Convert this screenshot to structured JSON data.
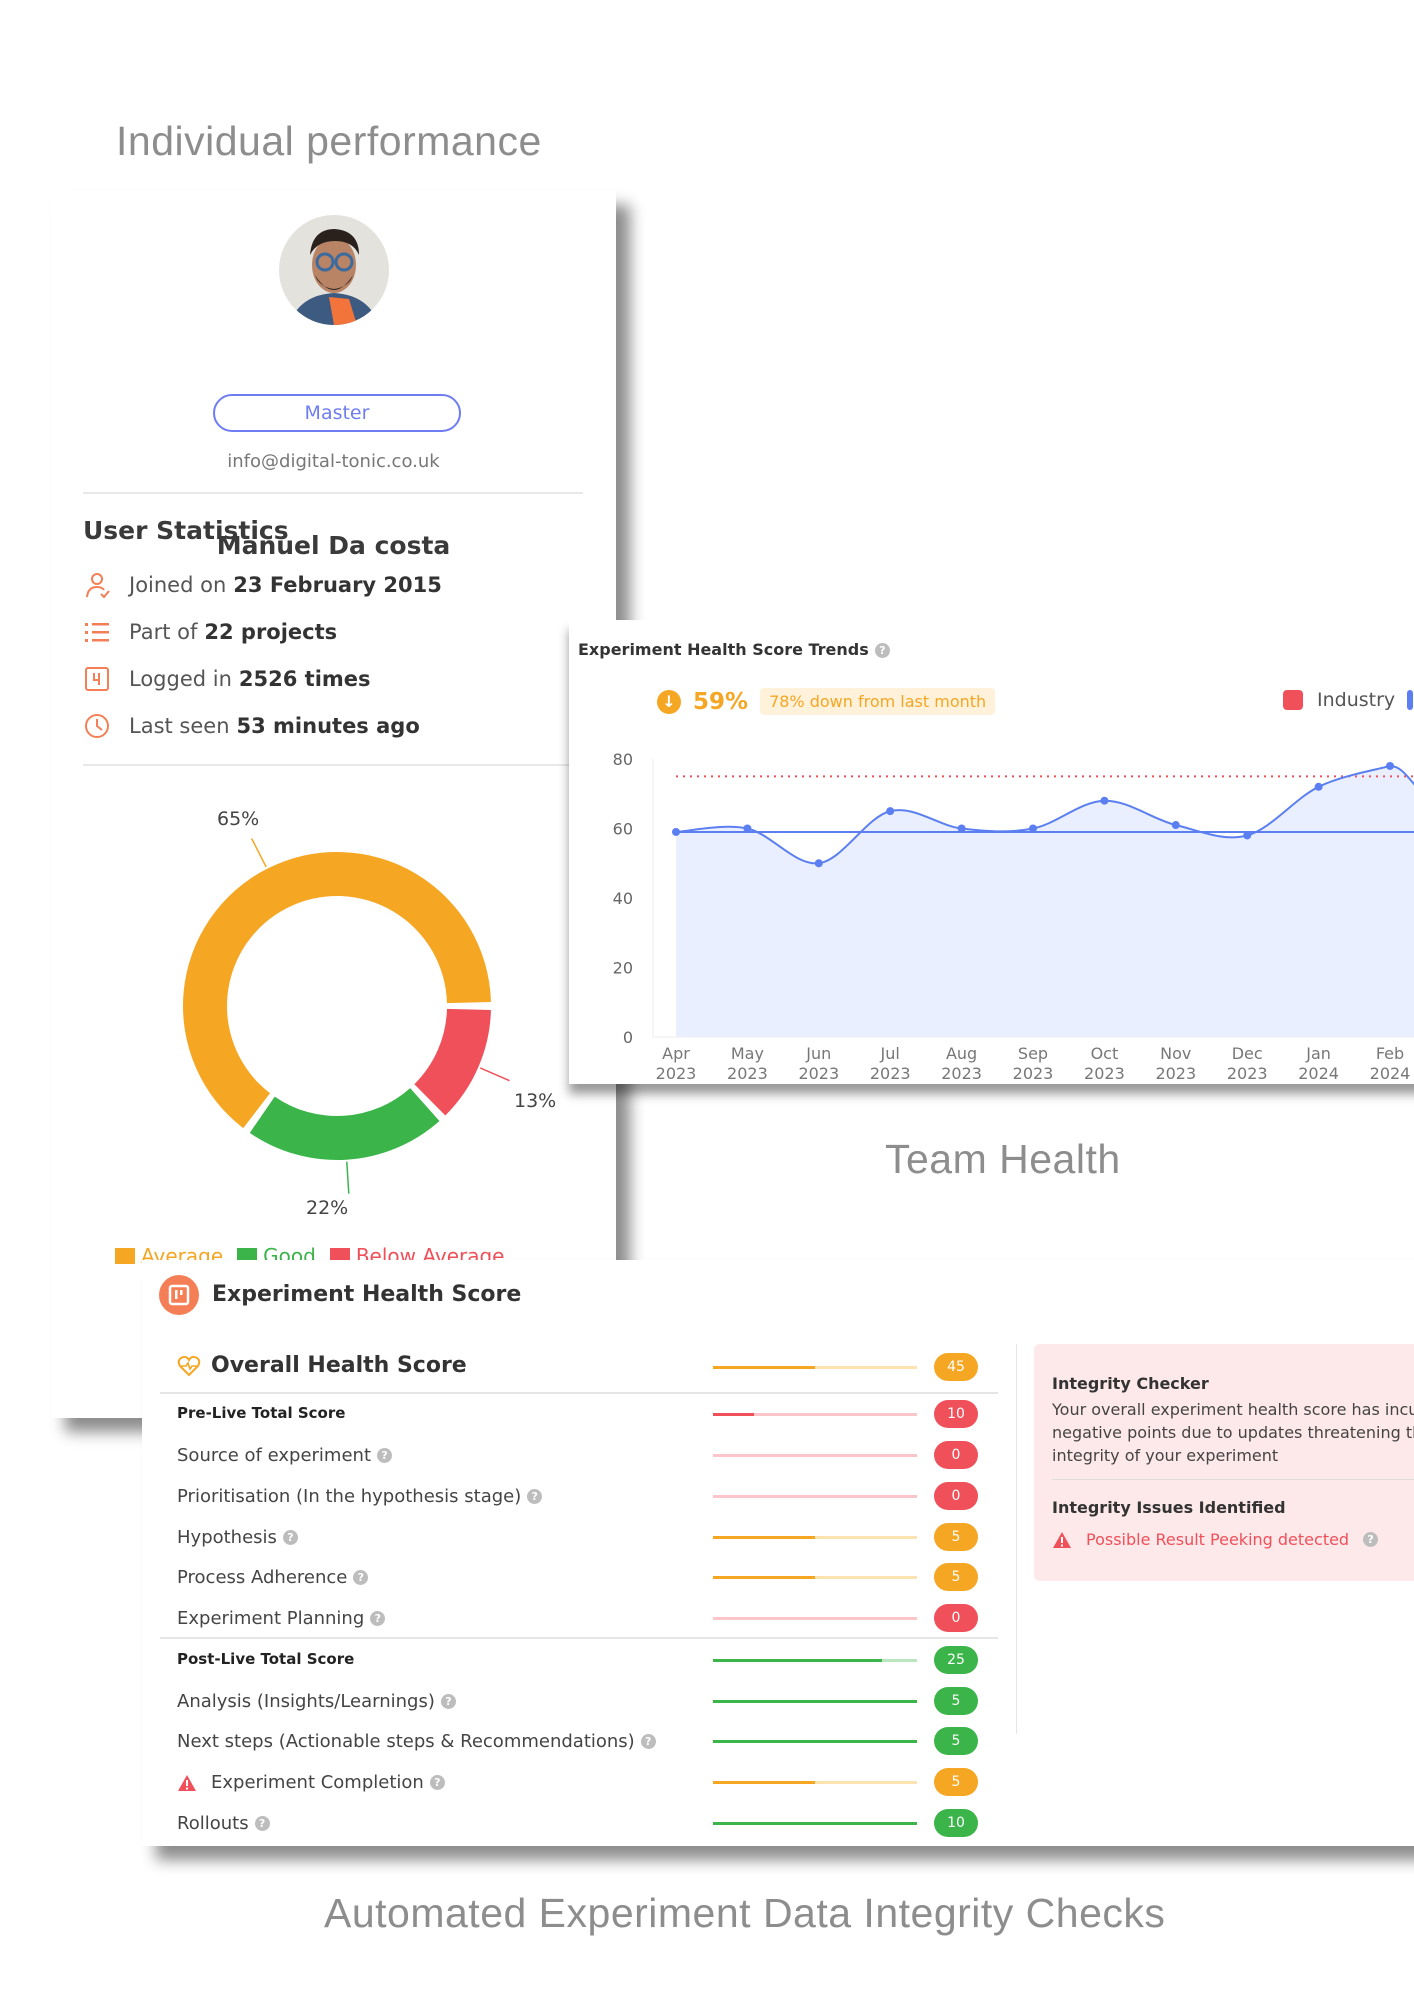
{
  "captions": {
    "individual": "Individual performance",
    "team": "Team Health",
    "integrity": "Automated Experiment Data Integrity Checks"
  },
  "profile": {
    "name": "Manuel Da costa",
    "role": "Master",
    "email": "info@digital-tonic.co.uk",
    "stats_title": "User Statistics",
    "stats": [
      {
        "icon": "user-check-icon",
        "prefix": "Joined on",
        "value": "23 February 2015"
      },
      {
        "icon": "list-icon",
        "prefix": "Part of",
        "value": "22 projects"
      },
      {
        "icon": "login-counter-icon",
        "prefix": "Logged in",
        "value": "2526 times"
      },
      {
        "icon": "clock-icon",
        "prefix": "Last seen",
        "value": "53 minutes ago"
      }
    ]
  },
  "donut": {
    "type": "pie",
    "slices": [
      {
        "name": "Below Average",
        "value": 13,
        "label": "13%",
        "color": "#f0505a"
      },
      {
        "name": "Good",
        "value": 22,
        "label": "22%",
        "color": "#3bb54a"
      },
      {
        "name": "Average",
        "value": 65,
        "label": "65%",
        "color": "#f5a623"
      }
    ],
    "legend": [
      "Average",
      "Good",
      "Below Average"
    ]
  },
  "chart_data": {
    "type": "area",
    "title": "Experiment Health Score Trends",
    "kpi": {
      "value": "59%",
      "change": "78% down from last month",
      "direction": "down"
    },
    "legend": [
      "Industry"
    ],
    "categories": [
      [
        "Apr",
        "2023"
      ],
      [
        "May",
        "2023"
      ],
      [
        "Jun",
        "2023"
      ],
      [
        "Jul",
        "2023"
      ],
      [
        "Aug",
        "2023"
      ],
      [
        "Sep",
        "2023"
      ],
      [
        "Oct",
        "2023"
      ],
      [
        "Nov",
        "2023"
      ],
      [
        "Dec",
        "2023"
      ],
      [
        "Jan",
        "2024"
      ],
      [
        "Feb",
        "2024"
      ]
    ],
    "values": [
      59,
      60,
      50,
      65,
      60,
      60,
      68,
      61,
      58,
      72,
      78
    ],
    "average_line": 59,
    "industry_line": 75,
    "ylim": [
      0,
      80
    ],
    "yticks": [
      0,
      20,
      40,
      60,
      80
    ],
    "colors": {
      "series": "#5b7ff0",
      "area": "#e9efff",
      "industry": "#f0505a"
    }
  },
  "score": {
    "title": "Experiment Health Score",
    "rows": [
      {
        "label": "Overall Health Score",
        "kind": "overall",
        "value": "45",
        "fill": 0.5,
        "color": "orange"
      },
      {
        "label": "Pre-Live Total Score",
        "kind": "bold",
        "value": "10",
        "fill": 0.2,
        "color": "red"
      },
      {
        "label": "Source of experiment",
        "help": true,
        "value": "0",
        "fill": 0,
        "color": "red"
      },
      {
        "label": "Prioritisation (In the hypothesis stage)",
        "help": true,
        "value": "0",
        "fill": 0,
        "color": "red"
      },
      {
        "label": "Hypothesis",
        "help": true,
        "value": "5",
        "fill": 0.5,
        "color": "orange"
      },
      {
        "label": "Process Adherence",
        "help": true,
        "value": "5",
        "fill": 0.5,
        "color": "orange"
      },
      {
        "label": "Experiment Planning",
        "help": true,
        "value": "0",
        "fill": 0,
        "color": "red"
      },
      {
        "label": "Post-Live Total Score",
        "kind": "bold",
        "value": "25",
        "fill": 0.83,
        "color": "green"
      },
      {
        "label": "Analysis (Insights/Learnings)",
        "help": true,
        "value": "5",
        "fill": 1,
        "color": "green"
      },
      {
        "label": "Next steps (Actionable steps & Recommendations)",
        "help": true,
        "value": "5",
        "fill": 1,
        "color": "green"
      },
      {
        "label": "Experiment Completion",
        "help": true,
        "warn": true,
        "value": "5",
        "fill": 0.5,
        "color": "orange"
      },
      {
        "label": "Rollouts",
        "help": true,
        "value": "10",
        "fill": 1,
        "color": "green"
      }
    ],
    "palette": {
      "orange": [
        "#f5a623",
        "#fde3b0"
      ],
      "red": [
        "#f0505a",
        "#fbc5ca"
      ],
      "green": [
        "#3bb54a",
        "#b9e5bf"
      ]
    },
    "integrity": {
      "title": "Integrity Checker",
      "text_lines": [
        "Your overall experiment health score has incurred",
        "negative points due to updates threatening the",
        "integrity of your experiment"
      ],
      "issues_title": "Integrity Issues Identified",
      "issues": [
        "Possible Result Peeking detected"
      ]
    }
  }
}
